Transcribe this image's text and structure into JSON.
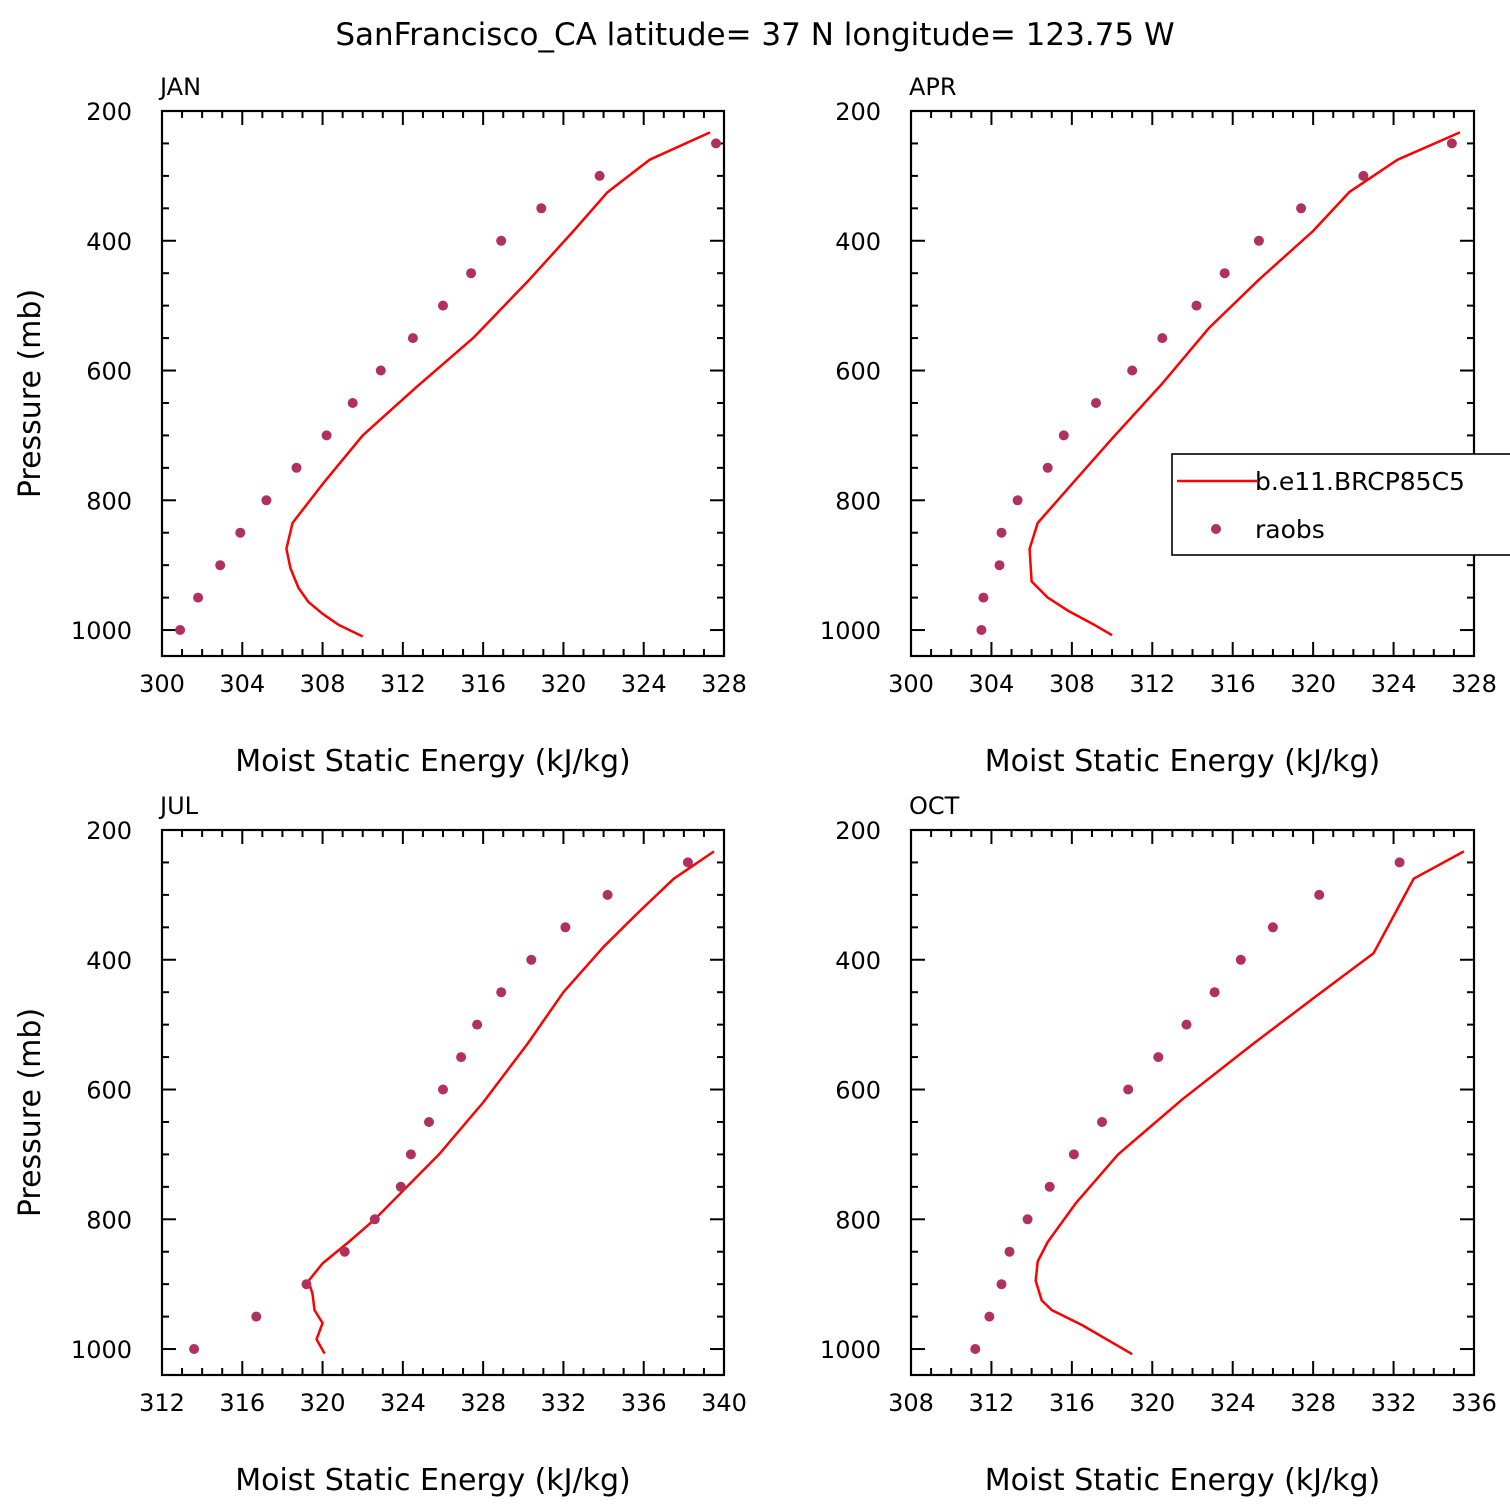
{
  "title": "SanFrancisco_CA  latitude= 37 N longitude= 123.75 W",
  "colors": {
    "model": "#ff0000",
    "obs": "#b03060",
    "axis": "#000000"
  },
  "legend": {
    "items": [
      {
        "label": "b.e11.BRCP85C5",
        "style": "line"
      },
      {
        "label": "raobs",
        "style": "marker"
      }
    ]
  },
  "chart_data": [
    {
      "type": "line",
      "panel": "JAN",
      "xlabel": "Moist Static Energy (kJ/kg)",
      "ylabel": "Pressure (mb)",
      "xlim": [
        300,
        328
      ],
      "ylim": [
        1000,
        200
      ],
      "xticks": [
        "300",
        "304",
        "308",
        "312",
        "316",
        "320",
        "324",
        "328"
      ],
      "yticks": [
        "200",
        "400",
        "600",
        "800",
        "1000"
      ],
      "series": [
        {
          "name": "b.e11.BRCP85C5",
          "style": "line",
          "x": [
            310.0,
            308.8,
            308.0,
            307.3,
            306.8,
            306.4,
            306.2,
            306.5,
            308.0,
            310.0,
            312.7,
            315.5,
            318.3,
            320.5,
            322.2,
            324.3,
            327.3
          ],
          "y": [
            1010,
            992,
            975,
            957,
            935,
            905,
            875,
            835,
            775,
            700,
            625,
            550,
            460,
            385,
            325,
            275,
            233
          ]
        },
        {
          "name": "raobs",
          "style": "marker",
          "x": [
            300.9,
            301.8,
            302.9,
            303.9,
            305.2,
            306.7,
            308.2,
            309.5,
            310.9,
            312.5,
            314.0,
            315.4,
            316.9,
            318.9,
            321.8,
            327.6
          ],
          "y": [
            1000,
            950,
            900,
            850,
            800,
            750,
            700,
            650,
            600,
            550,
            500,
            450,
            400,
            350,
            300,
            250
          ]
        }
      ]
    },
    {
      "type": "line",
      "panel": "APR",
      "xlabel": "Moist Static Energy (kJ/kg)",
      "ylabel": "",
      "xlim": [
        300,
        328
      ],
      "ylim": [
        1000,
        200
      ],
      "xticks": [
        "300",
        "304",
        "308",
        "312",
        "316",
        "320",
        "324",
        "328"
      ],
      "yticks": [
        "200",
        "400",
        "600",
        "800",
        "1000"
      ],
      "series": [
        {
          "name": "b.e11.BRCP85C5",
          "style": "line",
          "x": [
            310.0,
            309.0,
            307.8,
            306.8,
            306.0,
            305.9,
            306.3,
            308.0,
            310.0,
            312.5,
            314.8,
            317.3,
            320.0,
            321.8,
            324.2,
            327.3
          ],
          "y": [
            1008,
            990,
            970,
            950,
            925,
            875,
            835,
            775,
            705,
            620,
            535,
            460,
            385,
            325,
            275,
            233
          ]
        },
        {
          "name": "raobs",
          "style": "marker",
          "x": [
            303.5,
            303.6,
            304.4,
            304.5,
            305.3,
            306.8,
            307.6,
            309.2,
            311.0,
            312.5,
            314.2,
            315.6,
            317.3,
            319.4,
            322.5,
            326.9
          ],
          "y": [
            1000,
            950,
            900,
            850,
            800,
            750,
            700,
            650,
            600,
            550,
            500,
            450,
            400,
            350,
            300,
            250
          ]
        }
      ]
    },
    {
      "type": "line",
      "panel": "JUL",
      "xlabel": "Moist Static Energy (kJ/kg)",
      "ylabel": "Pressure (mb)",
      "xlim": [
        312,
        340
      ],
      "ylim": [
        1000,
        200
      ],
      "xticks": [
        "312",
        "316",
        "320",
        "324",
        "328",
        "332",
        "336",
        "340"
      ],
      "yticks": [
        "200",
        "400",
        "600",
        "800",
        "1000"
      ],
      "series": [
        {
          "name": "b.e11.BRCP85C5",
          "style": "line",
          "x": [
            320.1,
            319.7,
            320.0,
            319.6,
            319.5,
            319.3,
            320.0,
            321.3,
            322.6,
            325.8,
            328.0,
            330.2,
            332.0,
            334.0,
            335.8,
            337.5,
            339.5
          ],
          "y": [
            1007,
            985,
            960,
            940,
            915,
            895,
            868,
            835,
            800,
            700,
            620,
            530,
            450,
            380,
            325,
            275,
            233
          ]
        },
        {
          "name": "raobs",
          "style": "marker",
          "x": [
            313.6,
            316.7,
            319.2,
            321.1,
            322.6,
            323.9,
            324.4,
            325.3,
            326.0,
            326.9,
            327.7,
            328.9,
            330.4,
            332.1,
            334.2,
            338.2
          ],
          "y": [
            1000,
            950,
            900,
            850,
            800,
            750,
            700,
            650,
            600,
            550,
            500,
            450,
            400,
            350,
            300,
            250
          ]
        }
      ]
    },
    {
      "type": "line",
      "panel": "OCT",
      "xlabel": "Moist Static Energy (kJ/kg)",
      "ylabel": "",
      "xlim": [
        308,
        336
      ],
      "ylim": [
        1000,
        200
      ],
      "xticks": [
        "308",
        "312",
        "316",
        "320",
        "324",
        "328",
        "332",
        "336"
      ],
      "yticks": [
        "200",
        "400",
        "600",
        "800",
        "1000"
      ],
      "series": [
        {
          "name": "b.e11.BRCP85C5",
          "style": "line",
          "x": [
            319.0,
            316.5,
            315.0,
            314.5,
            314.2,
            314.3,
            314.8,
            316.2,
            318.3,
            321.5,
            325.0,
            328.2,
            331.0,
            333.0,
            335.5
          ],
          "y": [
            1008,
            963,
            940,
            925,
            895,
            865,
            835,
            775,
            700,
            615,
            530,
            455,
            390,
            275,
            233
          ]
        },
        {
          "name": "raobs",
          "style": "marker",
          "x": [
            311.2,
            311.9,
            312.5,
            312.9,
            313.8,
            314.9,
            316.1,
            317.5,
            318.8,
            320.3,
            321.7,
            323.1,
            324.4,
            326.0,
            328.3,
            332.3
          ],
          "y": [
            1000,
            950,
            900,
            850,
            800,
            750,
            700,
            650,
            600,
            550,
            500,
            450,
            400,
            350,
            300,
            250
          ]
        }
      ]
    }
  ]
}
